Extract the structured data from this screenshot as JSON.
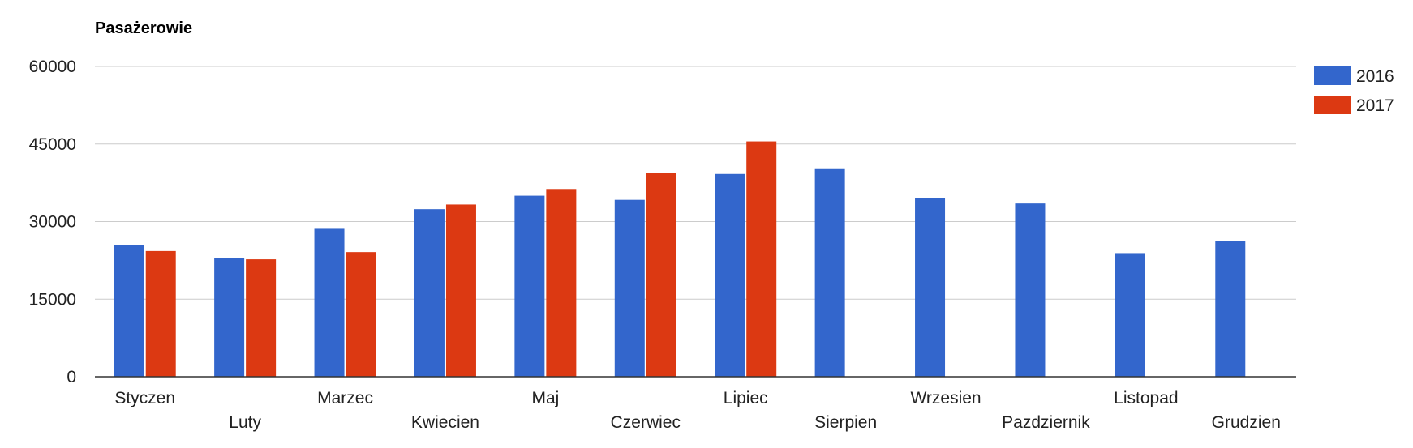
{
  "chart_data": {
    "type": "bar",
    "title": "Pasażerowie",
    "xlabel": "",
    "ylabel": "",
    "ylim": [
      0,
      60000
    ],
    "yticks": [
      0,
      15000,
      30000,
      45000,
      60000
    ],
    "grid": true,
    "legend_position": "right",
    "categories": [
      "Styczen",
      "Luty",
      "Marzec",
      "Kwiecien",
      "Maj",
      "Czerwiec",
      "Lipiec",
      "Sierpien",
      "Wrzesien",
      "Pazdziernik",
      "Listopad",
      "Grudzien"
    ],
    "series": [
      {
        "name": "2016",
        "color": "#3366cc",
        "values": [
          25500,
          22900,
          28600,
          32400,
          35000,
          34200,
          39200,
          40300,
          34500,
          33500,
          23900,
          26200
        ]
      },
      {
        "name": "2017",
        "color": "#dc3912",
        "values": [
          24300,
          22700,
          24100,
          33300,
          36300,
          39400,
          45500,
          null,
          null,
          null,
          null,
          null
        ]
      }
    ]
  }
}
